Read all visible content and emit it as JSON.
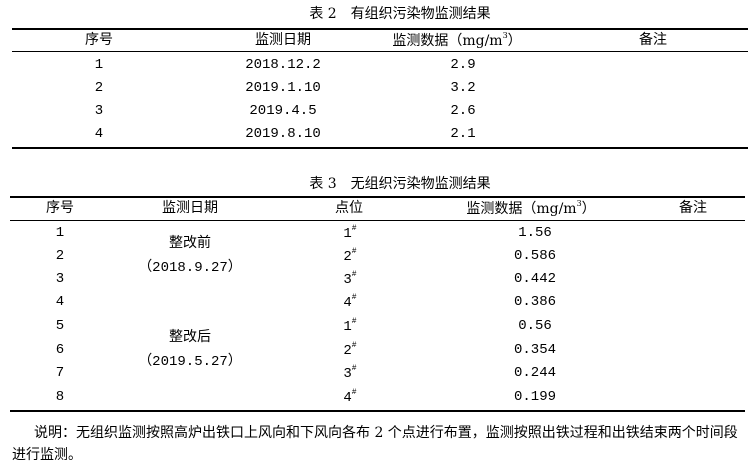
{
  "table2": {
    "title": "表 2　有组织污染物监测结果",
    "headers": [
      "序号",
      "监测日期",
      "监测数据（mg/m",
      "3",
      "）",
      "备注"
    ],
    "rows": [
      {
        "no": "1",
        "date": "2018.12.2",
        "value": "2.9",
        "remark": ""
      },
      {
        "no": "2",
        "date": "2019.1.10",
        "value": "3.2",
        "remark": ""
      },
      {
        "no": "3",
        "date": "2019.4.5",
        "value": "2.6",
        "remark": ""
      },
      {
        "no": "4",
        "date": "2019.8.10",
        "value": "2.1",
        "remark": ""
      }
    ]
  },
  "table3": {
    "title": "表 3　无组织污染物监测结果",
    "headers": [
      "序号",
      "监测日期",
      "点位",
      "监测数据（mg/m",
      "3",
      "）",
      "备注"
    ],
    "groups": [
      {
        "label": "整改前",
        "date": "（2018.9.27）"
      },
      {
        "label": "整改后",
        "date": "（2019.5.27）"
      }
    ],
    "rows": [
      {
        "no": "1",
        "point": "1",
        "mark": "#",
        "value": "1.56"
      },
      {
        "no": "2",
        "point": "2",
        "mark": "#",
        "value": "0.586"
      },
      {
        "no": "3",
        "point": "3",
        "mark": "#",
        "value": "0.442"
      },
      {
        "no": "4",
        "point": "4",
        "mark": "#",
        "value": "0.386"
      },
      {
        "no": "5",
        "point": "1",
        "mark": "#",
        "value": "0.56"
      },
      {
        "no": "6",
        "point": "2",
        "mark": "#",
        "value": "0.354"
      },
      {
        "no": "7",
        "point": "3",
        "mark": "#",
        "value": "0.244"
      },
      {
        "no": "8",
        "point": "4",
        "mark": "#",
        "value": "0.199"
      }
    ]
  },
  "note": "说明：无组织监测按照高炉出铁口上风向和下风向各布 2 个点进行布置，监测按照出铁过程和出铁结束两个时间段进行监测。"
}
